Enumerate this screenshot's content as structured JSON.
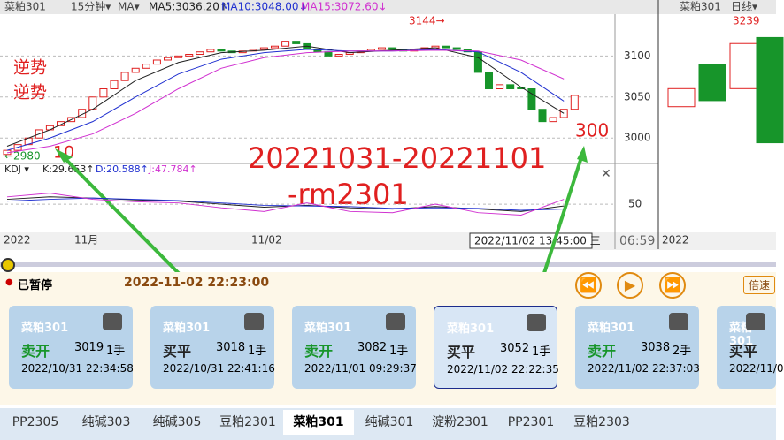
{
  "header": {
    "symbol": "菜粕301",
    "period": "15分钟▾",
    "ma_menu": "MA▾",
    "ma5": "MA5:3036.20↑",
    "ma10": "MA10:3048.00↓",
    "ma15": "MA15:3072.60↓",
    "right_symbol": "菜粕301",
    "right_period": "日线▾"
  },
  "main_chart": {
    "ylim": [
      2969,
      3151
    ],
    "yticks": [
      3000,
      3050,
      3100
    ],
    "open": [
      2980,
      2985,
      2992,
      3000,
      3010,
      3015,
      3020,
      3025,
      3035,
      3050,
      3060,
      3070,
      3080,
      3085,
      3090,
      3095,
      3098,
      3100,
      3102,
      3105,
      3108,
      3106,
      3104,
      3106,
      3108,
      3110,
      3112,
      3118,
      3115,
      3108,
      3105,
      3100,
      3102,
      3104,
      3106,
      3108,
      3110,
      3108,
      3106,
      3108,
      3110,
      3112,
      3110,
      3108,
      3105,
      3080,
      3060,
      3065,
      3062,
      3060,
      3035,
      3020,
      3025,
      3035
    ],
    "close": [
      2985,
      2992,
      3000,
      3010,
      3015,
      3020,
      3025,
      3035,
      3050,
      3060,
      3070,
      3080,
      3085,
      3090,
      3095,
      3098,
      3100,
      3102,
      3105,
      3108,
      3106,
      3104,
      3106,
      3108,
      3110,
      3112,
      3118,
      3115,
      3108,
      3105,
      3100,
      3102,
      3104,
      3106,
      3108,
      3110,
      3108,
      3106,
      3108,
      3110,
      3112,
      3110,
      3108,
      3105,
      3080,
      3060,
      3065,
      3060,
      3060,
      3035,
      3020,
      3025,
      3035,
      3052
    ],
    "up_color": "#e02020",
    "down_color": "#17952a",
    "ma_x": [
      0,
      4,
      8,
      12,
      16,
      20,
      24,
      28,
      32,
      36,
      40,
      44,
      48,
      52
    ],
    "ma_lines": [
      {
        "color": "#202020",
        "values": [
          2990,
          3010,
          3035,
          3070,
          3092,
          3104,
          3107,
          3112,
          3104,
          3107,
          3110,
          3098,
          3062,
          3030
        ]
      },
      {
        "color": "#2030d0",
        "values": [
          2985,
          3000,
          3020,
          3050,
          3078,
          3096,
          3104,
          3108,
          3106,
          3106,
          3108,
          3105,
          3080,
          3045
        ]
      },
      {
        "color": "#d030d0",
        "values": [
          2982,
          2990,
          3005,
          3030,
          3060,
          3085,
          3098,
          3104,
          3106,
          3106,
          3107,
          3106,
          3095,
          3072
        ]
      }
    ]
  },
  "annotations": {
    "high": "3144→",
    "low": "←2980",
    "counter1": "逆势",
    "counter2": "逆势",
    "n10": "10",
    "n300": "300",
    "range": "20221031-20221101",
    "contract": "-rm2301"
  },
  "kdj": {
    "label": "KDJ ▾",
    "k": "K:29.653↑",
    "d": "D:20.588↑",
    "j": "J:47.784↑",
    "ylim": [
      5,
      117
    ],
    "yticks": [
      50
    ],
    "lines": [
      {
        "color": "#202020",
        "values": [
          58,
          62,
          60,
          57,
          55,
          50,
          45,
          48,
          44,
          42,
          46,
          42,
          38,
          47
        ]
      },
      {
        "color": "#2030d0",
        "values": [
          55,
          58,
          60,
          58,
          56,
          52,
          48,
          47,
          46,
          43,
          44,
          43,
          40,
          42
        ]
      },
      {
        "color": "#d030d0",
        "values": [
          62,
          68,
          58,
          54,
          52,
          44,
          38,
          52,
          38,
          36,
          50,
          36,
          32,
          58
        ]
      }
    ]
  },
  "x_axis": {
    "year": "2022",
    "month": "11月",
    "day": "11/02",
    "cursor": "2022/11/02 13:45:00 三",
    "clock": "06:59",
    "right_year": "2022"
  },
  "daily_chart": {
    "high_label": "3239",
    "ylim": [
      3020,
      3255
    ],
    "open": [
      3110,
      3180,
      3140,
      3225
    ],
    "close": [
      3140,
      3120,
      3215,
      3050
    ]
  },
  "player": {
    "status": "已暂停",
    "time": "2022-11-02 22:23:00",
    "speed": "倍速"
  },
  "cards": [
    {
      "name": "菜粕301",
      "action": "卖开",
      "color": "#17952a",
      "price": "3019",
      "qty": "1手",
      "time": "2022/10/31 22:34:58"
    },
    {
      "name": "菜粕301",
      "action": "买平",
      "color": "#222",
      "price": "3018",
      "qty": "1手",
      "time": "2022/10/31 22:41:16"
    },
    {
      "name": "菜粕301",
      "action": "卖开",
      "color": "#17952a",
      "price": "3082",
      "qty": "1手",
      "time": "2022/11/01 09:29:37"
    },
    {
      "name": "菜粕301",
      "action": "买平",
      "color": "#222",
      "price": "3052",
      "qty": "1手",
      "time": "2022/11/02 22:22:35"
    },
    {
      "name": "菜粕301",
      "action": "卖开",
      "color": "#17952a",
      "price": "3038",
      "qty": "2手",
      "time": "2022/11/02 22:37:03"
    },
    {
      "name": "菜粕301",
      "action": "买平",
      "color": "#222",
      "time": "2022/11/0"
    }
  ],
  "selected_card": 3,
  "tabs": [
    "PP2305",
    "纯碱303",
    "纯碱305",
    "豆粕2301",
    "菜粕301",
    "纯碱301",
    "淀粉2301",
    "PP2301",
    "豆粕2303"
  ],
  "active_tab": 4
}
